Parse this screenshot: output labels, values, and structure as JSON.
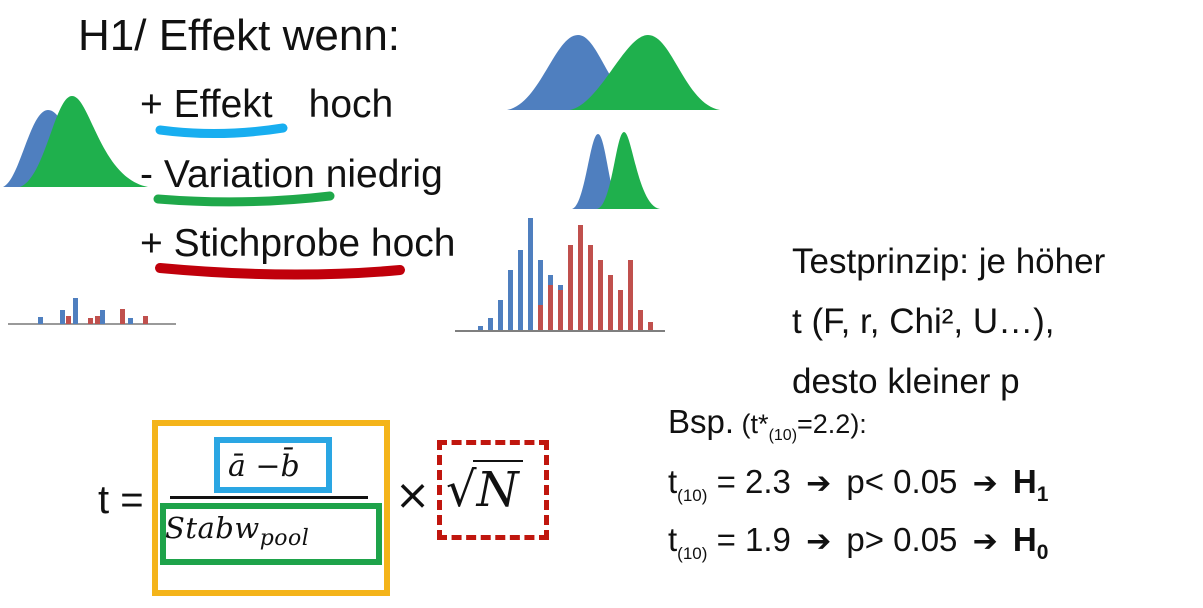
{
  "title": "H1/ Effekt wenn:",
  "hypotheses": {
    "effekt": {
      "prefix": "+ ",
      "word": "Effekt",
      "suffix": "hoch"
    },
    "variation": {
      "prefix": "- ",
      "word": "Variation",
      "suffix": " niedrig"
    },
    "stichprobe": {
      "prefix": "+ ",
      "word": "Stichprobe hoch"
    }
  },
  "principle": {
    "line1": "Testprinzip: je höher",
    "line2": "t (F, r, Chi², U…),",
    "line3": "desto kleiner p"
  },
  "example": {
    "label": "Bsp.",
    "crit_open": " (t*",
    "crit_sub": "(10)",
    "crit_close": "=2.2):",
    "rows": [
      {
        "t": "t",
        "df": "(10)",
        "value": " = 2.3",
        "p": "p< 0.05",
        "h": "H",
        "h_sub": "1"
      },
      {
        "t": "t",
        "df": "(10)",
        "value": " = 1.9",
        "p": "p> 0.05",
        "h": "H",
        "h_sub": "0"
      }
    ]
  },
  "formula": {
    "lhs": "t =",
    "numerator": "ā −b̄",
    "denominator_main": "Stabw",
    "denominator_sub": "pool",
    "times": "×",
    "root": "√",
    "n": "N"
  },
  "colors": {
    "blue_dist": "#4f7fbf",
    "green_dist": "#1fb04d",
    "red_bar": "#c0504d",
    "underline_effekt": "#18aef0",
    "underline_variation": "#1fa84a",
    "underline_stichprobe": "#c0000b",
    "box_yellow": "#f4b41a",
    "box_blue": "#2aa6e3",
    "box_green": "#1ea34a",
    "box_red": "#c0160e"
  },
  "icons": {
    "arrow": "right-arrow-icon"
  }
}
